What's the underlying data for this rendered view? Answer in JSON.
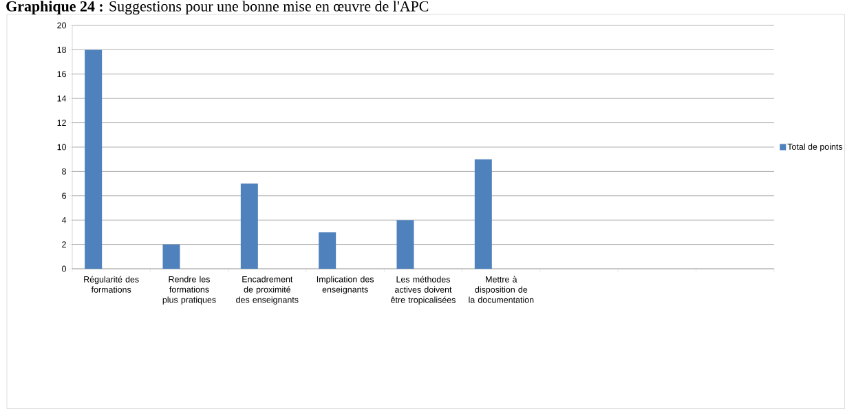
{
  "chart_data": {
    "type": "bar",
    "title": "**Graphique 24 :** Suggestions pour une bonne mise en œuvre de l'APC",
    "categories": [
      "Régularité des formations",
      "Rendre les formations plus pratiques",
      "Encadrement de proximité des enseignants",
      "Implication des enseignants",
      "Les méthodes actives doivent être tropicalisées",
      "Mettre à disposition de la documentation",
      null,
      null,
      null
    ],
    "series": [
      {
        "name": "Total de points",
        "color": "#4f81bd",
        "values": [
          18,
          2,
          7,
          3,
          4,
          9,
          null,
          null,
          null
        ]
      }
    ],
    "ylim": [
      0,
      20
    ],
    "yticks": [
      0,
      2,
      4,
      6,
      8,
      10,
      12,
      14,
      16,
      18,
      20
    ],
    "grid": "y",
    "legend": "right"
  }
}
